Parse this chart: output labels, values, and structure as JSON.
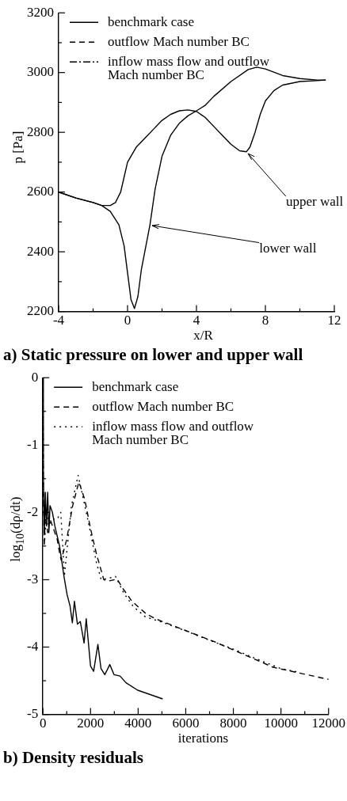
{
  "chart_data": [
    {
      "type": "line",
      "title": "a) Static pressure on lower and upper wall",
      "xlabel": "x/R",
      "ylabel": "p [Pa]",
      "xlim": [
        -4,
        12
      ],
      "ylim": [
        2200,
        3200
      ],
      "xticks": [
        -4,
        {
          "value": -2,
          "label": null
        },
        0,
        {
          "value": 2,
          "label": null
        },
        4,
        {
          "value": 6,
          "label": null
        },
        8,
        {
          "value": 10,
          "label": null
        },
        12
      ],
      "yticks": [
        2200,
        {
          "value": 2300,
          "label": null
        },
        2400,
        {
          "value": 2500,
          "label": null
        },
        2600,
        {
          "value": 2700,
          "label": null
        },
        2800,
        {
          "value": 2900,
          "label": null
        },
        3000,
        {
          "value": 3100,
          "label": null
        },
        3200
      ],
      "legend": "top left",
      "marker": "none",
      "annotations": [
        {
          "text": "upper wall",
          "x": 6.9,
          "y": 2735
        },
        {
          "text": "lower wall",
          "x": 1.3,
          "y": 2490
        }
      ],
      "series": [
        {
          "name": "benchmark case",
          "color": "#000000",
          "line_style": "solid",
          "x": [
            -4,
            -3,
            -2,
            -1.5,
            -1,
            -0.5,
            -0.2,
            0,
            0.2,
            0.4,
            0.6,
            0.8,
            1,
            1.3,
            1.6,
            2,
            2.5,
            3,
            3.5,
            4,
            4.5,
            5,
            6,
            7,
            7.5,
            8,
            9,
            10,
            11,
            11.5
          ],
          "values": [
            2600,
            2580,
            2565,
            2555,
            2535,
            2490,
            2420,
            2330,
            2240,
            2210,
            2250,
            2340,
            2400,
            2490,
            2610,
            2720,
            2790,
            2830,
            2855,
            2872,
            2890,
            2920,
            2970,
            3010,
            3018,
            3012,
            2990,
            2980,
            2975,
            2975
          ]
        },
        {
          "name": "outflow Mach number BC",
          "color": "#000000",
          "line_style": "dashed"
        },
        {
          "name": "inflow mass flow and outflow Mach number BC",
          "color": "#000000",
          "line_style": "dashdot"
        },
        {
          "color": "#000000",
          "line_style": "solid",
          "x": [
            -4,
            -3,
            -2,
            -1.5,
            -1,
            -0.7,
            -0.4,
            -0.2,
            0,
            0.5,
            1,
            1.5,
            2,
            2.5,
            3,
            3.5,
            4,
            4.5,
            5,
            5.5,
            6,
            6.5,
            6.9,
            7.1,
            7.4,
            7.7,
            8,
            8.5,
            9,
            10,
            11,
            11.5
          ],
          "values": [
            2600,
            2580,
            2565,
            2555,
            2555,
            2565,
            2600,
            2650,
            2700,
            2750,
            2780,
            2810,
            2840,
            2860,
            2872,
            2875,
            2870,
            2850,
            2820,
            2790,
            2760,
            2738,
            2735,
            2750,
            2800,
            2860,
            2905,
            2940,
            2958,
            2970,
            2973,
            2975
          ]
        }
      ]
    },
    {
      "type": "line",
      "title": "b) Density residuals",
      "xlabel": "iterations",
      "ylabel": "log$_{10}$(dρ/dt)",
      "xlim": [
        0,
        12000
      ],
      "ylim": [
        -5,
        0
      ],
      "xticks": [
        0,
        {
          "value": 1000,
          "label": null
        },
        2000,
        {
          "value": 3000,
          "label": null
        },
        4000,
        {
          "value": 5000,
          "label": null
        },
        6000,
        {
          "value": 7000,
          "label": null
        },
        8000,
        {
          "value": 9000,
          "label": null
        },
        10000,
        {
          "value": 11000,
          "label": null
        },
        12000
      ],
      "yticks": [
        -5,
        {
          "value": -4.5,
          "label": null
        },
        -4,
        {
          "value": -3.5,
          "label": null
        },
        -3,
        {
          "value": -2.5,
          "label": null
        },
        -2,
        {
          "value": -1.5,
          "label": null
        },
        -1,
        {
          "value": -0.5,
          "label": null
        },
        0
      ],
      "legend": "top left",
      "marker": "none",
      "series": [
        {
          "name": "benchmark case",
          "color": "#000000",
          "line_style": "solid",
          "x": [
            0,
            20,
            60,
            100,
            150,
            200,
            250,
            300,
            400,
            500,
            700,
            890,
            1015,
            1140,
            1237,
            1324,
            1450,
            1570,
            1730,
            1820,
            2000,
            2130,
            2310,
            2440,
            2600,
            2810,
            2990,
            3240,
            3490,
            3980,
            5030
          ],
          "values": [
            0,
            -1.5,
            -2.3,
            -1.7,
            -2.2,
            -1.7,
            -2.3,
            -1.9,
            -2,
            -2.2,
            -2.5,
            -2.96,
            -3.22,
            -3.39,
            -3.64,
            -3.32,
            -3.66,
            -3.62,
            -3.94,
            -3.58,
            -4.28,
            -4.36,
            -3.96,
            -4.32,
            -4.41,
            -4.26,
            -4.41,
            -4.43,
            -4.53,
            -4.64,
            -4.77
          ]
        },
        {
          "name": "outflow Mach number BC",
          "color": "#000000",
          "line_style": "dashed",
          "x": [
            0,
            20,
            60,
            100,
            200,
            300,
            400,
            500,
            600,
            700,
            770,
            1000,
            1250,
            1510,
            1760,
            2000,
            2250,
            2560,
            2750,
            3120,
            3360,
            3740,
            4350,
            4730,
            5960,
            7200,
            8440,
            9670,
            12000
          ],
          "values": [
            0,
            -1.8,
            -2.5,
            -2,
            -2.3,
            -2.1,
            -2.2,
            -2.3,
            -2.4,
            -2.6,
            -2.71,
            -2.4,
            -1.9,
            -1.55,
            -1.81,
            -2.24,
            -2.62,
            -3,
            -3.02,
            -2.99,
            -3.13,
            -3.32,
            -3.51,
            -3.58,
            -3.75,
            -3.92,
            -4.11,
            -4.3,
            -4.48
          ]
        },
        {
          "name": "inflow mass flow and outflow Mach number BC",
          "color": "#000000",
          "line_style": "dotted",
          "x": [
            0,
            20,
            80,
            150,
            250,
            400,
            600,
            750,
            850,
            900,
            1000,
            1200,
            1480,
            1700,
            2000,
            2250,
            2450,
            2750,
            3050,
            3400,
            3800,
            4300,
            5000,
            6000,
            7000,
            8000,
            9000,
            10000,
            10700
          ],
          "values": [
            0,
            -1.6,
            -2.4,
            -2,
            -2.2,
            -2.1,
            -2.1,
            -2,
            -2.6,
            -2.95,
            -2.6,
            -1.9,
            -1.45,
            -1.8,
            -2.3,
            -2.75,
            -3,
            -2.98,
            -2.95,
            -3.2,
            -3.4,
            -3.55,
            -3.63,
            -3.76,
            -3.9,
            -4.03,
            -4.18,
            -4.32,
            -4.37
          ]
        }
      ]
    }
  ]
}
